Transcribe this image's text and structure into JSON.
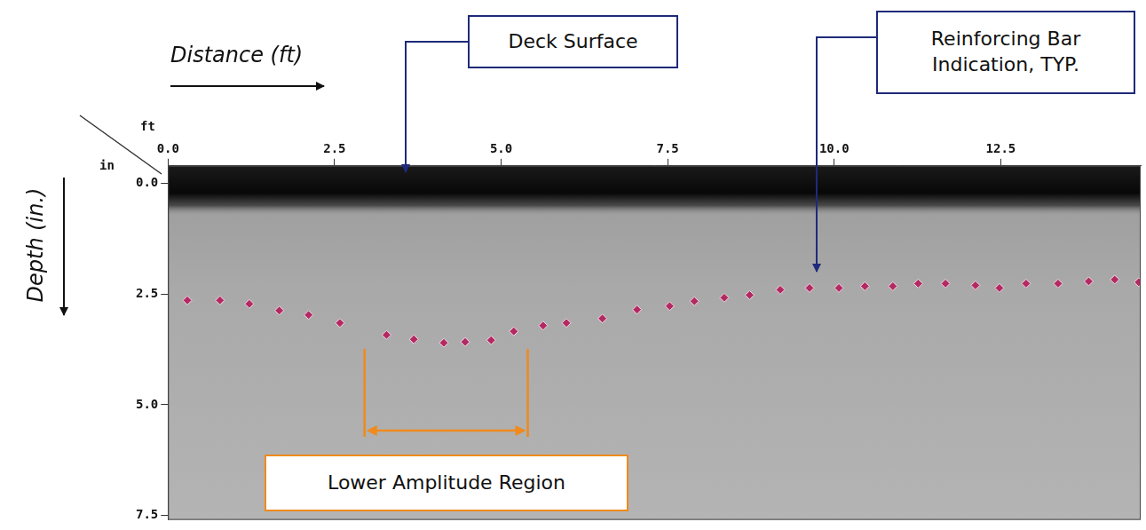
{
  "chart_data": {
    "type": "scatter",
    "x_label": "Distance (ft)",
    "y_label": "Depth (in.)",
    "x_unit_label": "ft",
    "y_unit_label": "in",
    "x": [
      0.29,
      0.78,
      1.22,
      1.67,
      2.11,
      2.58,
      3.28,
      3.69,
      4.14,
      4.46,
      4.85,
      5.19,
      5.63,
      5.98,
      6.52,
      7.04,
      7.53,
      7.9,
      8.35,
      8.73,
      9.19,
      9.63,
      10.07,
      10.46,
      10.88,
      11.26,
      11.67,
      12.12,
      12.48,
      12.88,
      13.36,
      13.82,
      14.21,
      14.57
    ],
    "values": [
      2.64,
      2.64,
      2.72,
      2.87,
      2.97,
      3.15,
      3.42,
      3.52,
      3.6,
      3.58,
      3.54,
      3.34,
      3.21,
      3.15,
      3.05,
      2.85,
      2.77,
      2.66,
      2.58,
      2.52,
      2.4,
      2.36,
      2.36,
      2.32,
      2.32,
      2.26,
      2.26,
      2.3,
      2.36,
      2.26,
      2.26,
      2.21,
      2.17,
      2.23
    ],
    "color": "#b32a63",
    "marker": "diamond",
    "xlim": [
      0,
      14.6
    ],
    "xticks": [
      {
        "value": 0,
        "label": "0.0"
      },
      2.5,
      {
        "value": 5,
        "label": "5.0"
      },
      7.5,
      {
        "value": 10,
        "label": "10.0"
      },
      12.5
    ],
    "ylim": [
      -0.4,
      7.6
    ],
    "yticks": [
      {
        "value": 0,
        "label": "0.0"
      },
      2.5,
      {
        "value": 5,
        "label": "5.0"
      },
      7.5
    ],
    "grid": false,
    "annotations": [
      {
        "text": "Deck Surface"
      },
      {
        "text": "Reinforcing Bar Indication, TYP."
      },
      {
        "text": "Lower Amplitude Region",
        "x_range": [
          2.95,
          5.4
        ]
      }
    ]
  }
}
